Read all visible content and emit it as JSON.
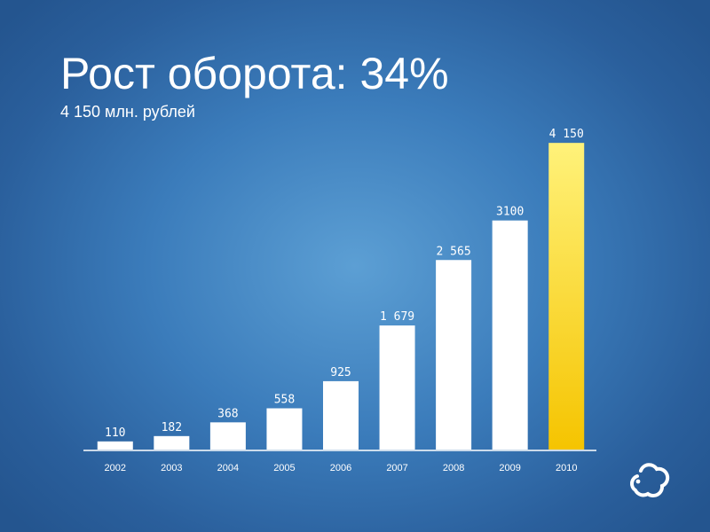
{
  "slide": {
    "title": "Рост оборота: 34%",
    "subtitle": "4 150 млн. рублей",
    "logo": "cloud-logo-icon"
  },
  "chart_data": {
    "type": "bar",
    "categories": [
      "2002",
      "2003",
      "2004",
      "2005",
      "2006",
      "2007",
      "2008",
      "2009",
      "2010"
    ],
    "values": [
      110,
      182,
      368,
      558,
      925,
      1679,
      2565,
      3100,
      4150
    ],
    "data_labels": [
      "110",
      "182",
      "368",
      "558",
      "925",
      "1 679",
      "2 565",
      "3100",
      "4 150"
    ],
    "ylim": [
      0,
      4500
    ],
    "grid": false,
    "legend": "none",
    "colors": {
      "bar": "#ffffff",
      "highlight_top": "#fff27a",
      "highlight_bottom": "#f5c400",
      "axis": "#ffffff"
    },
    "highlight_index": 8
  }
}
